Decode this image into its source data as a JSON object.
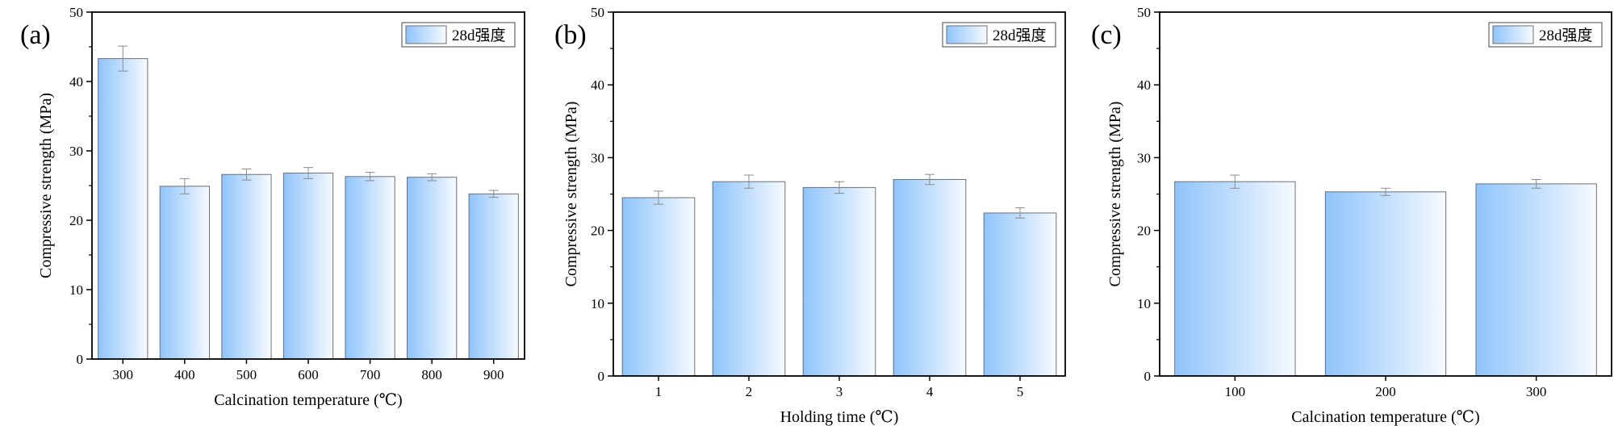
{
  "colors": {
    "bar_start": "#8fc4fb",
    "bar_end": "#f6faff",
    "bar_stroke": "#6f6f6f",
    "error": "#8a8a8a",
    "axis": "#000000"
  },
  "chart_data": [
    {
      "type": "bar",
      "panel_label": "(a)",
      "categories": [
        "300",
        "400",
        "500",
        "600",
        "700",
        "800",
        "900"
      ],
      "series": [
        {
          "name": "28d强度",
          "values": [
            43.3,
            24.9,
            26.6,
            26.8,
            26.3,
            26.2,
            23.8
          ],
          "errors": [
            1.8,
            1.1,
            0.8,
            0.8,
            0.6,
            0.5,
            0.5
          ]
        }
      ],
      "xlabel": "Calcination temperature (℃)",
      "ylabel": "Compressive strength (MPa)",
      "ylim": [
        0,
        50
      ],
      "yticks": [
        "0",
        "10",
        "20",
        "30",
        "40",
        "50"
      ],
      "legend_position": "top-right",
      "grid": false
    },
    {
      "type": "bar",
      "panel_label": "(b)",
      "categories": [
        "1",
        "2",
        "3",
        "4",
        "5"
      ],
      "series": [
        {
          "name": "28d强度",
          "values": [
            24.5,
            26.7,
            25.9,
            27.0,
            22.4
          ],
          "errors": [
            0.9,
            0.9,
            0.8,
            0.7,
            0.7
          ]
        }
      ],
      "xlabel": "Holding time (℃)",
      "ylabel": "Compressive strength (MPa)",
      "ylim": [
        0,
        50
      ],
      "yticks": [
        "0",
        "10",
        "20",
        "30",
        "40",
        "50"
      ],
      "legend_position": "top-right",
      "grid": false
    },
    {
      "type": "bar",
      "panel_label": "(c)",
      "categories": [
        "100",
        "200",
        "300"
      ],
      "series": [
        {
          "name": "28d强度",
          "values": [
            26.7,
            25.3,
            26.4
          ],
          "errors": [
            0.9,
            0.5,
            0.6
          ]
        }
      ],
      "xlabel": "Calcination temperature (℃)",
      "ylabel": "Compressive strength (MPa)",
      "ylim": [
        0,
        50
      ],
      "yticks": [
        "0",
        "10",
        "20",
        "30",
        "40",
        "50"
      ],
      "legend_position": "top-right",
      "grid": false
    }
  ]
}
